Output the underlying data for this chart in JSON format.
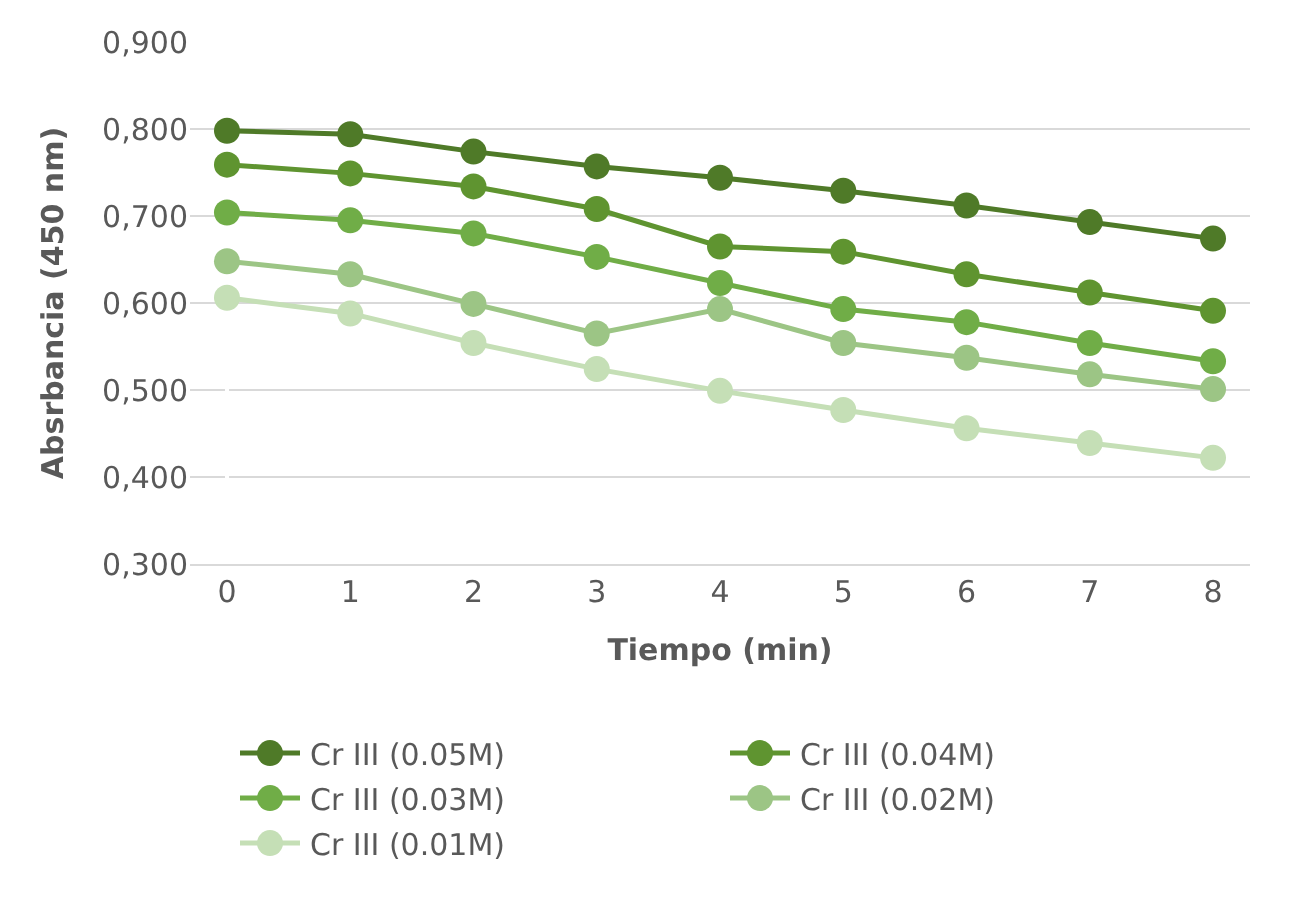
{
  "chart_data": {
    "type": "line",
    "xlabel": "Tiempo (min)",
    "ylabel": "Absrbancia (450 nm)",
    "categories": [
      "0",
      "1",
      "2",
      "3",
      "4",
      "5",
      "6",
      "7",
      "8"
    ],
    "series": [
      {
        "name": "Cr III (0.05M)",
        "color": "#4f7a28",
        "values": [
          0.798,
          0.794,
          0.774,
          0.757,
          0.744,
          0.729,
          0.712,
          0.693,
          0.674
        ]
      },
      {
        "name": "Cr III (0.04M)",
        "color": "#5f9430",
        "values": [
          0.759,
          0.749,
          0.734,
          0.708,
          0.665,
          0.659,
          0.633,
          0.612,
          0.591
        ]
      },
      {
        "name": "Cr III (0.03M)",
        "color": "#70ad47",
        "values": [
          0.704,
          0.695,
          0.68,
          0.653,
          0.623,
          0.593,
          0.578,
          0.554,
          0.533
        ]
      },
      {
        "name": "Cr III (0.02M)",
        "color": "#9cc585",
        "values": [
          0.648,
          0.633,
          0.599,
          0.565,
          0.593,
          0.554,
          0.537,
          0.518,
          0.501
        ]
      },
      {
        "name": "Cr III (0.01M)",
        "color": "#c5dfb6",
        "values": [
          0.606,
          0.588,
          0.554,
          0.524,
          0.499,
          0.477,
          0.456,
          0.439,
          0.422
        ]
      }
    ],
    "ylim": [
      0.3,
      0.9
    ],
    "yticks": [
      {
        "value": 0.3,
        "label": "0,300"
      },
      {
        "value": 0.4,
        "label": "0,400"
      },
      {
        "value": 0.5,
        "label": "0,500"
      },
      {
        "value": 0.6,
        "label": "0,600"
      },
      {
        "value": 0.7,
        "label": "0,700"
      },
      {
        "value": 0.8,
        "label": "0,800"
      },
      {
        "value": 0.9,
        "label": "0,900"
      }
    ],
    "grid": "y",
    "legend": "bottom",
    "marker": "circle",
    "line_style": "solid"
  }
}
